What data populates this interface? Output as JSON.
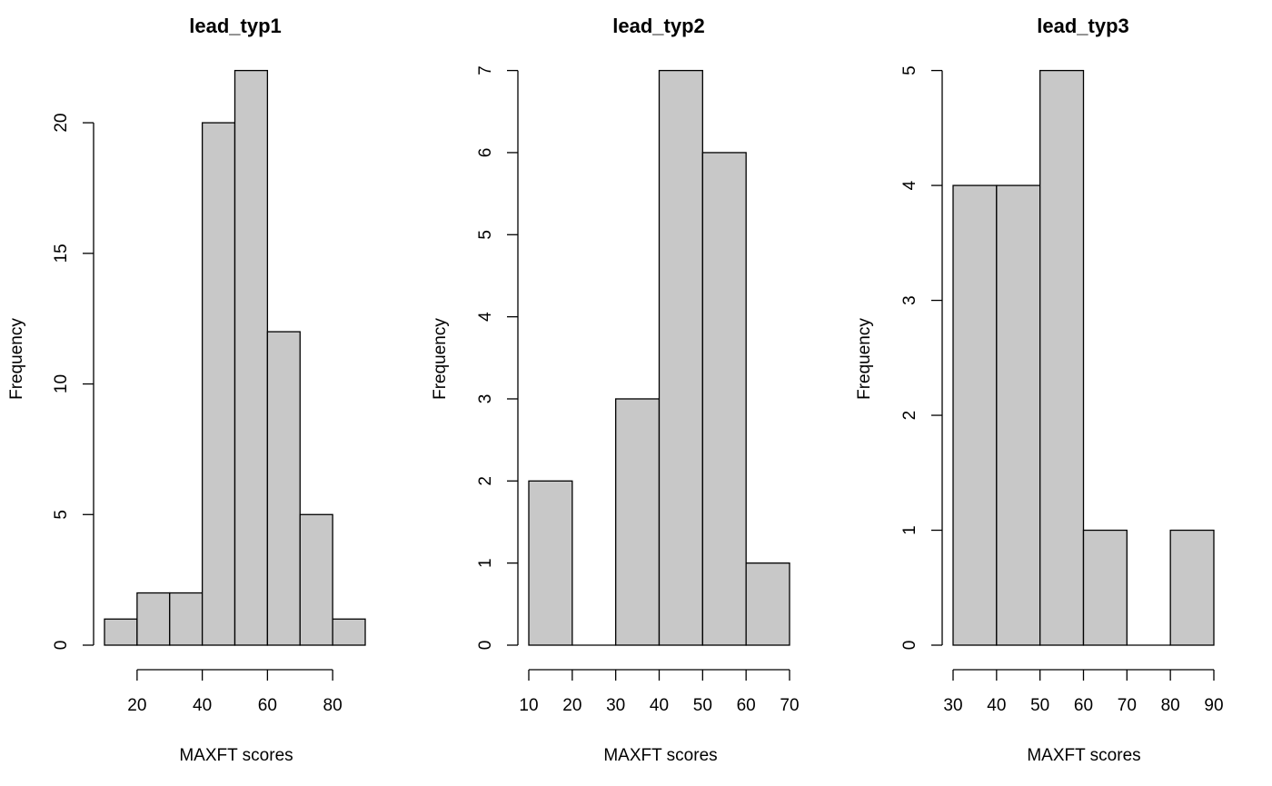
{
  "chart_data": [
    {
      "type": "bar",
      "title": "lead_typ1",
      "xlabel": "MAXFT scores",
      "ylabel": "Frequency",
      "bins": [
        [
          10,
          20
        ],
        [
          20,
          30
        ],
        [
          30,
          40
        ],
        [
          40,
          50
        ],
        [
          50,
          60
        ],
        [
          60,
          70
        ],
        [
          70,
          80
        ],
        [
          80,
          90
        ]
      ],
      "values": [
        1,
        2,
        2,
        20,
        22,
        12,
        5,
        1
      ],
      "xlim": [
        10,
        90
      ],
      "ylim": [
        0,
        22
      ],
      "xticks": [
        20,
        40,
        60,
        80
      ],
      "yticks": [
        0,
        5,
        10,
        15,
        20
      ],
      "bar_color": "#c8c8c8"
    },
    {
      "type": "bar",
      "title": "lead_typ2",
      "xlabel": "MAXFT scores",
      "ylabel": "Frequency",
      "bins": [
        [
          10,
          20
        ],
        [
          20,
          30
        ],
        [
          30,
          40
        ],
        [
          40,
          50
        ],
        [
          50,
          60
        ],
        [
          60,
          70
        ]
      ],
      "values": [
        2,
        0,
        3,
        7,
        6,
        1
      ],
      "xlim": [
        10,
        70
      ],
      "ylim": [
        0,
        7
      ],
      "xticks": [
        10,
        20,
        30,
        40,
        50,
        60,
        70
      ],
      "yticks": [
        0,
        1,
        2,
        3,
        4,
        5,
        6,
        7
      ],
      "bar_color": "#c8c8c8"
    },
    {
      "type": "bar",
      "title": "lead_typ3",
      "xlabel": "MAXFT scores",
      "ylabel": "Frequency",
      "bins": [
        [
          30,
          40
        ],
        [
          40,
          50
        ],
        [
          50,
          60
        ],
        [
          60,
          70
        ],
        [
          70,
          80
        ],
        [
          80,
          90
        ]
      ],
      "values": [
        4,
        4,
        5,
        1,
        0,
        1
      ],
      "xlim": [
        30,
        90
      ],
      "ylim": [
        0,
        5
      ],
      "xticks": [
        30,
        40,
        50,
        60,
        70,
        80,
        90
      ],
      "yticks": [
        0,
        1,
        2,
        3,
        4,
        5
      ],
      "bar_color": "#c8c8c8"
    }
  ]
}
